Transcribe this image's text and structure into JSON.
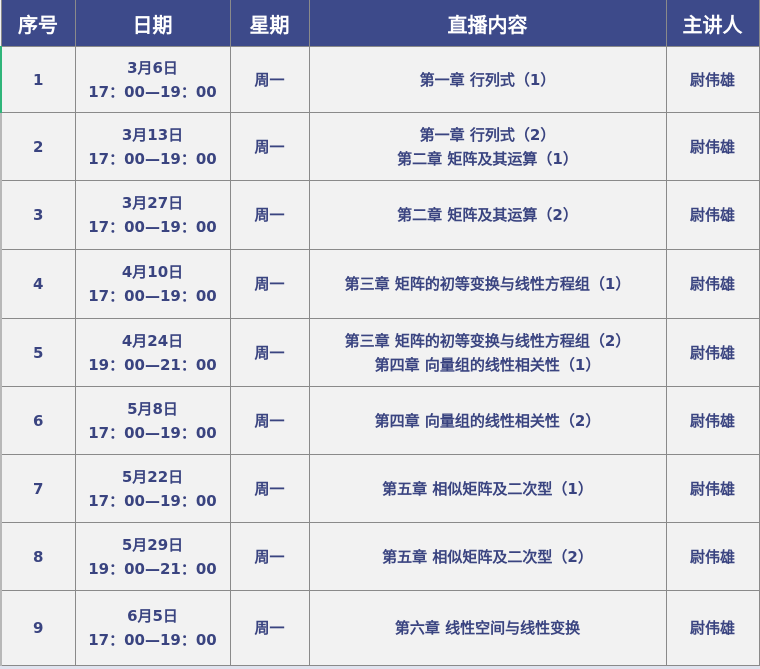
{
  "colors": {
    "header_bg": "#3d4a8a",
    "header_text": "#ffffff",
    "cell_text": "#3a4480",
    "cell_bg": "#f2f2f2"
  },
  "headers": [
    "序号",
    "日期",
    "星期",
    "直播内容",
    "主讲人"
  ],
  "rows": [
    {
      "no": "1",
      "date": "3月6日",
      "time": "17：00—19：00",
      "weekday": "周一",
      "content": [
        "第一章 行列式（1）"
      ],
      "speaker": "尉伟雄"
    },
    {
      "no": "2",
      "date": "3月13日",
      "time": "17：00—19：00",
      "weekday": "周一",
      "content": [
        "第一章 行列式（2）",
        "第二章 矩阵及其运算（1）"
      ],
      "speaker": "尉伟雄"
    },
    {
      "no": "3",
      "date": "3月27日",
      "time": "17：00—19：00",
      "weekday": "周一",
      "content": [
        "第二章 矩阵及其运算（2）"
      ],
      "speaker": "尉伟雄"
    },
    {
      "no": "4",
      "date": "4月10日",
      "time": "17：00—19：00",
      "weekday": "周一",
      "content": [
        "第三章 矩阵的初等变换与线性方程组（1）"
      ],
      "speaker": "尉伟雄"
    },
    {
      "no": "5",
      "date": "4月24日",
      "time": "19：00—21：00",
      "weekday": "周一",
      "content": [
        "第三章 矩阵的初等变换与线性方程组（2）",
        "第四章 向量组的线性相关性（1）"
      ],
      "speaker": "尉伟雄"
    },
    {
      "no": "6",
      "date": "5月8日",
      "time": "17：00—19：00",
      "weekday": "周一",
      "content": [
        "第四章 向量组的线性相关性（2）"
      ],
      "speaker": "尉伟雄"
    },
    {
      "no": "7",
      "date": "5月22日",
      "time": "17：00—19：00",
      "weekday": "周一",
      "content": [
        "第五章 相似矩阵及二次型（1）"
      ],
      "speaker": "尉伟雄"
    },
    {
      "no": "8",
      "date": "5月29日",
      "time": "19：00—21：00",
      "weekday": "周一",
      "content": [
        "第五章 相似矩阵及二次型（2）"
      ],
      "speaker": "尉伟雄"
    },
    {
      "no": "9",
      "date": "6月5日",
      "time": "17：00—19：00",
      "weekday": "周一",
      "content": [
        "第六章 线性空间与线性变换"
      ],
      "speaker": "尉伟雄"
    }
  ]
}
